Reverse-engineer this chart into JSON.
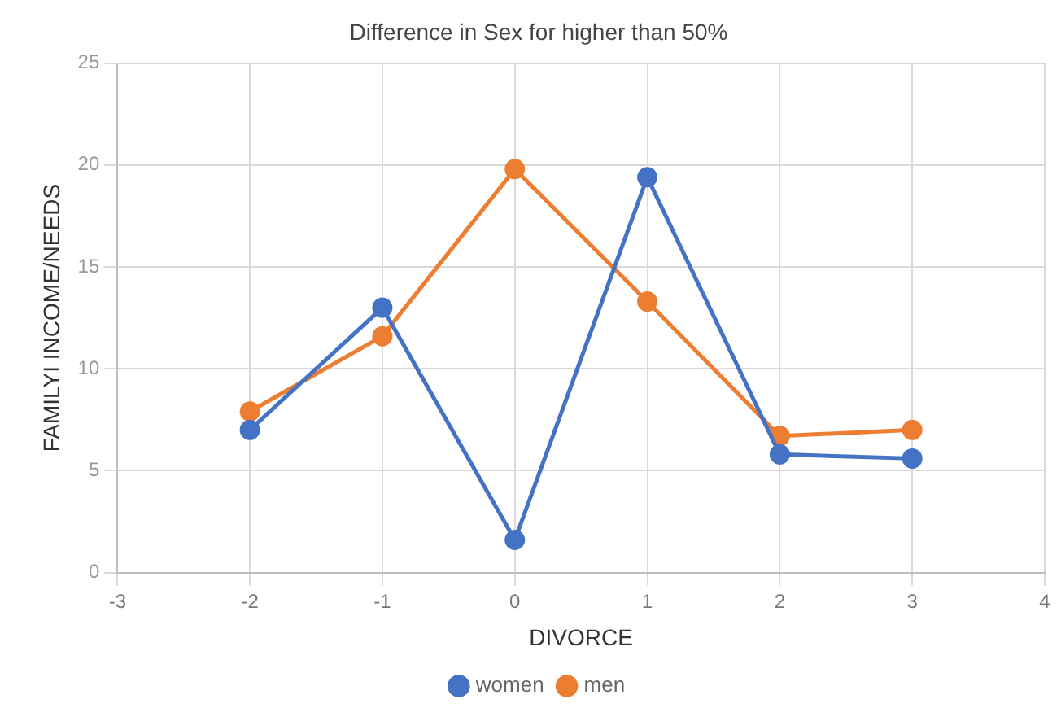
{
  "chart_data": {
    "type": "line",
    "title": "Difference in Sex for higher than 50%",
    "xlabel": "DIVORCE",
    "ylabel": "FAMILYI INCOME/NEEDS",
    "x": [
      -2,
      -1,
      0,
      1,
      2,
      3
    ],
    "series": [
      {
        "name": "women",
        "color": "#4472c4",
        "values": [
          7.0,
          13.0,
          1.6,
          19.4,
          5.8,
          5.6
        ]
      },
      {
        "name": "men",
        "color": "#ed7d31",
        "values": [
          7.9,
          11.6,
          19.8,
          13.3,
          6.7,
          7.0
        ]
      }
    ],
    "xlim": [
      -3,
      4
    ],
    "xticks": [
      -3,
      -2,
      -1,
      0,
      1,
      2,
      3,
      4
    ],
    "ylim": [
      0,
      25
    ],
    "yticks": [
      0,
      5,
      10,
      15,
      20,
      25
    ],
    "grid": true,
    "legend": "bottom",
    "marker": "circle",
    "line_style": "solid"
  }
}
